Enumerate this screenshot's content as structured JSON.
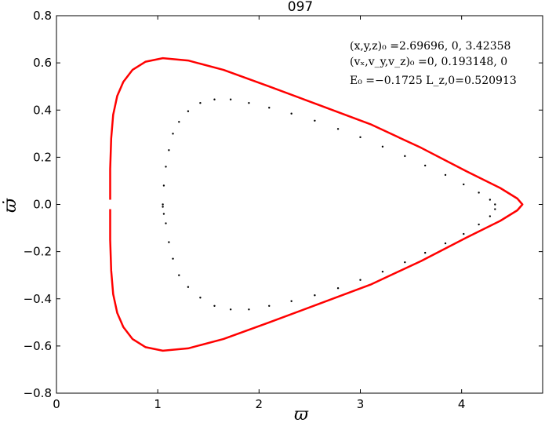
{
  "chart_data": {
    "type": "scatter",
    "title": "097",
    "xlabel": "ϖ",
    "ylabel": "ϖ̇",
    "xlim": [
      0,
      4.8
    ],
    "ylim": [
      -0.8,
      0.8
    ],
    "xticks": [
      0,
      1,
      2,
      3,
      4
    ],
    "yticks": [
      -0.8,
      -0.6,
      -0.4,
      -0.2,
      0.0,
      0.2,
      0.4,
      0.6,
      0.8
    ],
    "xtick_labels": [
      "0",
      "1",
      "2",
      "3",
      "4"
    ],
    "ytick_labels": [
      "−0.8",
      "−0.6",
      "−0.4",
      "−0.2",
      "0.0",
      "0.2",
      "0.4",
      "0.6",
      "0.8"
    ],
    "grid": false,
    "annotations": [
      "(x,y,z)₀ =2.69696, 0, 3.42358",
      "(vₓ,v_y,v_z)₀ =0, 0.193148, 0",
      "E₀ =−0.1725  L_z,0=0.520913"
    ],
    "series": [
      {
        "style": "line",
        "color": "#ff0000",
        "x": [
          0.53,
          0.53,
          0.54,
          0.56,
          0.6,
          0.66,
          0.75,
          0.88,
          1.05,
          1.3,
          1.65,
          2.1,
          2.6,
          3.1,
          3.6,
          4.05,
          4.38,
          4.55,
          4.6,
          4.55,
          4.38,
          4.05,
          3.6,
          3.1,
          2.6,
          2.1,
          1.65,
          1.3,
          1.05,
          0.88,
          0.75,
          0.66,
          0.6,
          0.56,
          0.54,
          0.53,
          0.53
        ],
        "y": [
          0.02,
          0.15,
          0.28,
          0.38,
          0.46,
          0.52,
          0.57,
          0.605,
          0.62,
          0.61,
          0.57,
          0.5,
          0.42,
          0.34,
          0.24,
          0.14,
          0.07,
          0.025,
          0.0,
          -0.025,
          -0.07,
          -0.14,
          -0.24,
          -0.34,
          -0.42,
          -0.5,
          -0.57,
          -0.61,
          -0.62,
          -0.605,
          -0.57,
          -0.52,
          -0.46,
          -0.38,
          -0.28,
          -0.15,
          -0.02
        ]
      },
      {
        "style": "dots",
        "color": "#000000",
        "x": [
          1.05,
          1.06,
          1.08,
          1.11,
          1.15,
          1.21,
          1.3,
          1.42,
          1.56,
          1.72,
          1.9,
          2.1,
          2.32,
          2.55,
          2.78,
          3.0,
          3.22,
          3.44,
          3.64,
          3.84,
          4.02,
          4.17,
          4.28,
          4.33,
          4.33,
          4.28,
          4.17,
          4.02,
          3.84,
          3.64,
          3.44,
          3.22,
          3.0,
          2.78,
          2.55,
          2.32,
          2.1,
          1.9,
          1.72,
          1.56,
          1.42,
          1.3,
          1.21,
          1.15,
          1.11,
          1.08,
          1.06,
          1.05
        ],
        "y": [
          0.0,
          0.08,
          0.16,
          0.23,
          0.3,
          0.35,
          0.395,
          0.43,
          0.445,
          0.445,
          0.43,
          0.41,
          0.385,
          0.355,
          0.32,
          0.285,
          0.245,
          0.205,
          0.165,
          0.125,
          0.085,
          0.05,
          0.02,
          0.0,
          -0.02,
          -0.05,
          -0.085,
          -0.125,
          -0.165,
          -0.205,
          -0.245,
          -0.285,
          -0.32,
          -0.355,
          -0.385,
          -0.41,
          -0.43,
          -0.445,
          -0.445,
          -0.43,
          -0.395,
          -0.35,
          -0.3,
          -0.23,
          -0.16,
          -0.08,
          -0.04,
          -0.01
        ]
      }
    ]
  }
}
